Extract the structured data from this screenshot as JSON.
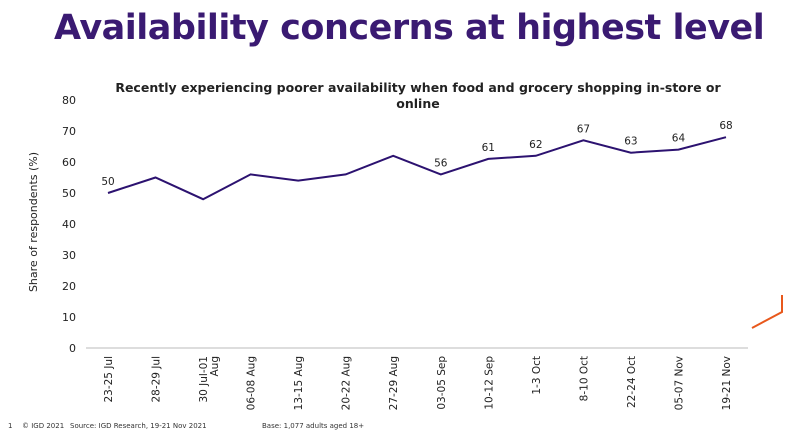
{
  "slide": {
    "title": "Availability concerns at highest level",
    "page_number": "1",
    "copyright": "© IGD 2021",
    "source": "Source: IGD Research, 19-21 Nov 2021",
    "base": "Base: 1,077 adults aged 18+"
  },
  "colors": {
    "title": "#3a1a72",
    "line": "#2c1270",
    "accent": "#e8581c"
  },
  "chart_data": {
    "type": "line",
    "title": "Recently experiencing poorer availability when food and grocery shopping in-store or online",
    "ylabel": "Share of respondents (%)",
    "xlabel": "",
    "ylim": [
      0,
      80
    ],
    "yticks": [
      0,
      10,
      20,
      30,
      40,
      50,
      60,
      70,
      80
    ],
    "grid": false,
    "categories": [
      "23-25 Jul",
      "28-29 Jul",
      "30 Jul-01 Aug",
      "06-08 Aug",
      "13-15 Aug",
      "20-22 Aug",
      "27-29 Aug",
      "03-05 Sep",
      "10-12 Sep",
      "1-3 Oct",
      "8-10 Oct",
      "22-24 Oct",
      "05-07 Nov",
      "19-21 Nov"
    ],
    "values": [
      50,
      55,
      48,
      56,
      54,
      56,
      62,
      56,
      61,
      62,
      67,
      63,
      64,
      68
    ],
    "data_labels": [
      {
        "index": 0,
        "text": "50"
      },
      {
        "index": 7,
        "text": "56"
      },
      {
        "index": 8,
        "text": "61"
      },
      {
        "index": 9,
        "text": "62"
      },
      {
        "index": 10,
        "text": "67"
      },
      {
        "index": 11,
        "text": "63"
      },
      {
        "index": 12,
        "text": "64"
      },
      {
        "index": 13,
        "text": "68"
      }
    ]
  }
}
